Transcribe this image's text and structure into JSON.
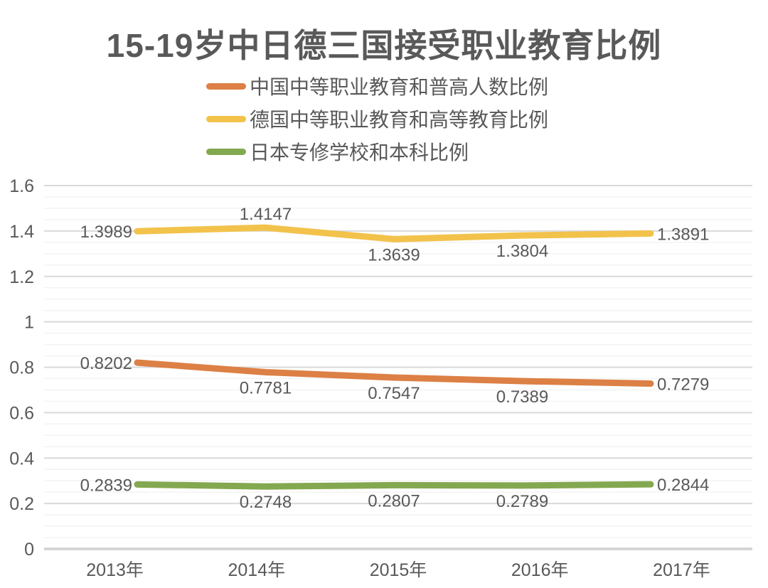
{
  "title": "15-19岁中日德三国接受职业教育比例",
  "colors": {
    "title_text": "#595959",
    "label_text": "#595959",
    "axis_text": "#595959",
    "major_gridline": "#D9D9D9",
    "minor_gridline": "#F2F2F2",
    "zero_axis_line": "#D5D5D5",
    "background": "#FFFFFF",
    "series_china": "#DC8045",
    "series_germany": "#F2C24B",
    "series_japan": "#84A850"
  },
  "chart_data": {
    "type": "line",
    "title": "15-19岁中日德三国接受职业教育比例",
    "categories": [
      "2013年",
      "2014年",
      "2015年",
      "2016年",
      "2017年"
    ],
    "series": [
      {
        "name": "中国中等职业教育和普高人数比例",
        "color": "#DC8045",
        "values": [
          0.8202,
          0.7781,
          0.7547,
          0.7389,
          0.7279
        ],
        "label_pos": [
          "left",
          "below",
          "below",
          "below",
          "right"
        ]
      },
      {
        "name": "德国中等职业教育和高等教育比例",
        "color": "#F2C24B",
        "values": [
          1.3989,
          1.4147,
          1.3639,
          1.3804,
          1.3891
        ],
        "label_pos": [
          "left",
          "above",
          "below",
          "below",
          "right"
        ]
      },
      {
        "name": "日本专修学校和本科比例",
        "color": "#84A850",
        "values": [
          0.2839,
          0.2748,
          0.2807,
          0.2789,
          0.2844
        ],
        "label_pos": [
          "left",
          "below",
          "below",
          "below",
          "right"
        ]
      }
    ],
    "xlabel": "",
    "ylabel": "",
    "ylim": [
      0,
      1.6
    ],
    "y_ticks": [
      0,
      0.2,
      0.4,
      0.6,
      0.8,
      1,
      1.2,
      1.4,
      1.6
    ],
    "y_tick_labels": [
      "0",
      "0.2",
      "0.4",
      "0.6",
      "0.8",
      "1",
      "1.2",
      "1.4",
      "1.6"
    ],
    "minor_gridline_step": 0.05,
    "grid": true,
    "legend_position": "top-left-vertical-stack",
    "data_labels_shown": true
  }
}
